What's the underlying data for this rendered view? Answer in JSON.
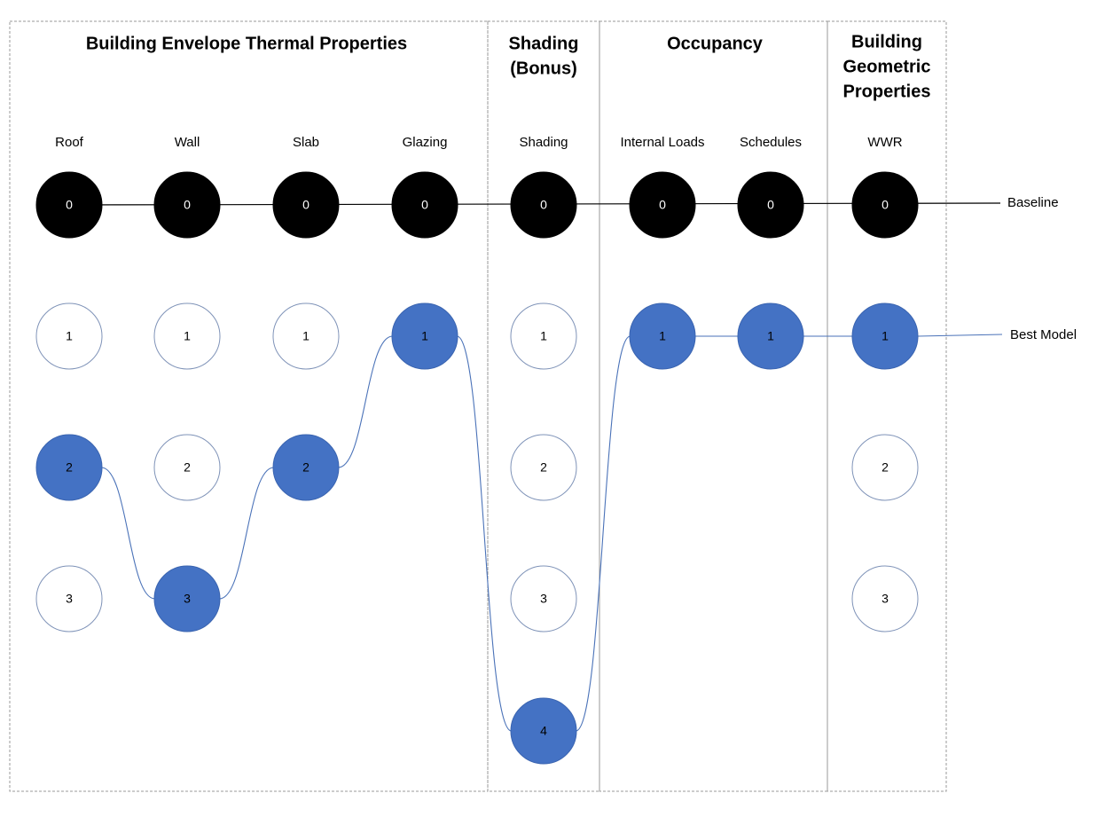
{
  "sections": [
    {
      "id": "envelope",
      "title_lines": [
        "Building Envelope Thermal Properties"
      ]
    },
    {
      "id": "shading",
      "title_lines": [
        "Shading",
        "(Bonus)"
      ]
    },
    {
      "id": "occupancy",
      "title_lines": [
        "Occupancy"
      ]
    },
    {
      "id": "geometry",
      "title_lines": [
        "Building",
        "Geometric",
        "Properties"
      ]
    }
  ],
  "columns": [
    {
      "label": "Roof",
      "options": [
        "0",
        "1",
        "2",
        "3"
      ],
      "selected": "2"
    },
    {
      "label": "Wall",
      "options": [
        "0",
        "1",
        "2",
        "3"
      ],
      "selected": "3"
    },
    {
      "label": "Slab",
      "options": [
        "0",
        "1",
        "2"
      ],
      "selected": "2"
    },
    {
      "label": "Glazing",
      "options": [
        "0",
        "1"
      ],
      "selected": "1"
    },
    {
      "label": "Shading",
      "options": [
        "0",
        "1",
        "2",
        "3",
        "4"
      ],
      "selected": "4"
    },
    {
      "label": "Internal Loads",
      "options": [
        "0",
        "1"
      ],
      "selected": "1"
    },
    {
      "label": "Schedules",
      "options": [
        "0",
        "1"
      ],
      "selected": "1"
    },
    {
      "label": "WWR",
      "options": [
        "0",
        "1",
        "2",
        "3"
      ],
      "selected": "1"
    }
  ],
  "row_labels": {
    "baseline": "Baseline",
    "best": "Best Model"
  },
  "colors": {
    "baseline_node": "#000000",
    "selected_node": "#4472c4",
    "empty_node_stroke": "#7f93b8",
    "best_path": "#4a72b8"
  }
}
